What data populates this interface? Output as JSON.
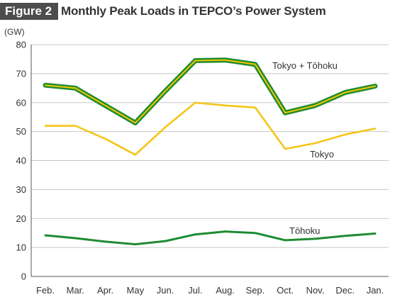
{
  "figure": {
    "badge": "Figure 2",
    "title": "Monthly Peak Loads in TEPCO’s Power System"
  },
  "chart_data": {
    "type": "line",
    "ylabel": "(GW)",
    "ylim": [
      0,
      80
    ],
    "yticks": [
      0,
      10,
      20,
      30,
      40,
      50,
      60,
      70,
      80
    ],
    "categories": [
      "Feb.",
      "Mar.",
      "Apr.",
      "May",
      "Jun.",
      "Jul.",
      "Aug.",
      "Sep.",
      "Oct.",
      "Nov.",
      "Dec.",
      "Jan."
    ],
    "grid": true,
    "series": [
      {
        "name": "Tokyo + Tōhoku",
        "color": "#1e8c32",
        "outline_color": "#f2c500",
        "values": [
          66,
          65,
          59,
          53,
          64,
          74.5,
          74.7,
          73.2,
          56.5,
          59,
          63.5,
          65.7
        ]
      },
      {
        "name": "Tokyo",
        "color": "#f5c518",
        "values": [
          52,
          52,
          47.5,
          42,
          51.5,
          60,
          59,
          58.3,
          44,
          46,
          49,
          51
        ]
      },
      {
        "name": "Tōhoku",
        "color": "#1e8c32",
        "values": [
          14.2,
          13.2,
          12,
          11.1,
          12.2,
          14.5,
          15.5,
          15,
          12.5,
          13,
          14,
          14.8
        ]
      }
    ]
  }
}
